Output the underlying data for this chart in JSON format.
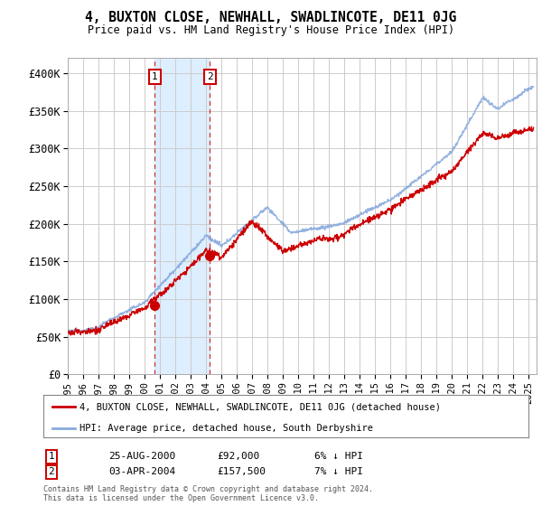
{
  "title": "4, BUXTON CLOSE, NEWHALL, SWADLINCOTE, DE11 0JG",
  "subtitle": "Price paid vs. HM Land Registry's House Price Index (HPI)",
  "ylim": [
    0,
    420000
  ],
  "yticks": [
    0,
    50000,
    100000,
    150000,
    200000,
    250000,
    300000,
    350000,
    400000
  ],
  "ytick_labels": [
    "£0",
    "£50K",
    "£100K",
    "£150K",
    "£200K",
    "£250K",
    "£300K",
    "£350K",
    "£400K"
  ],
  "xlim_start": 1995.0,
  "xlim_end": 2025.5,
  "sale1_date": 2000.648,
  "sale1_price": 92000,
  "sale1_label": "1",
  "sale1_text": "25-AUG-2000",
  "sale1_price_str": "£92,000",
  "sale1_hpi_str": "6% ↓ HPI",
  "sale2_date": 2004.253,
  "sale2_price": 157500,
  "sale2_label": "2",
  "sale2_text": "03-APR-2004",
  "sale2_price_str": "£157,500",
  "sale2_hpi_str": "7% ↓ HPI",
  "line_color_price": "#cc0000",
  "line_color_hpi": "#88aadd",
  "legend_label_price": "4, BUXTON CLOSE, NEWHALL, SWADLINCOTE, DE11 0JG (detached house)",
  "legend_label_hpi": "HPI: Average price, detached house, South Derbyshire",
  "footer1": "Contains HM Land Registry data © Crown copyright and database right 2024.",
  "footer2": "This data is licensed under the Open Government Licence v3.0.",
  "shade_color": "#ddeeff",
  "background_color": "#ffffff",
  "grid_color": "#cccccc"
}
